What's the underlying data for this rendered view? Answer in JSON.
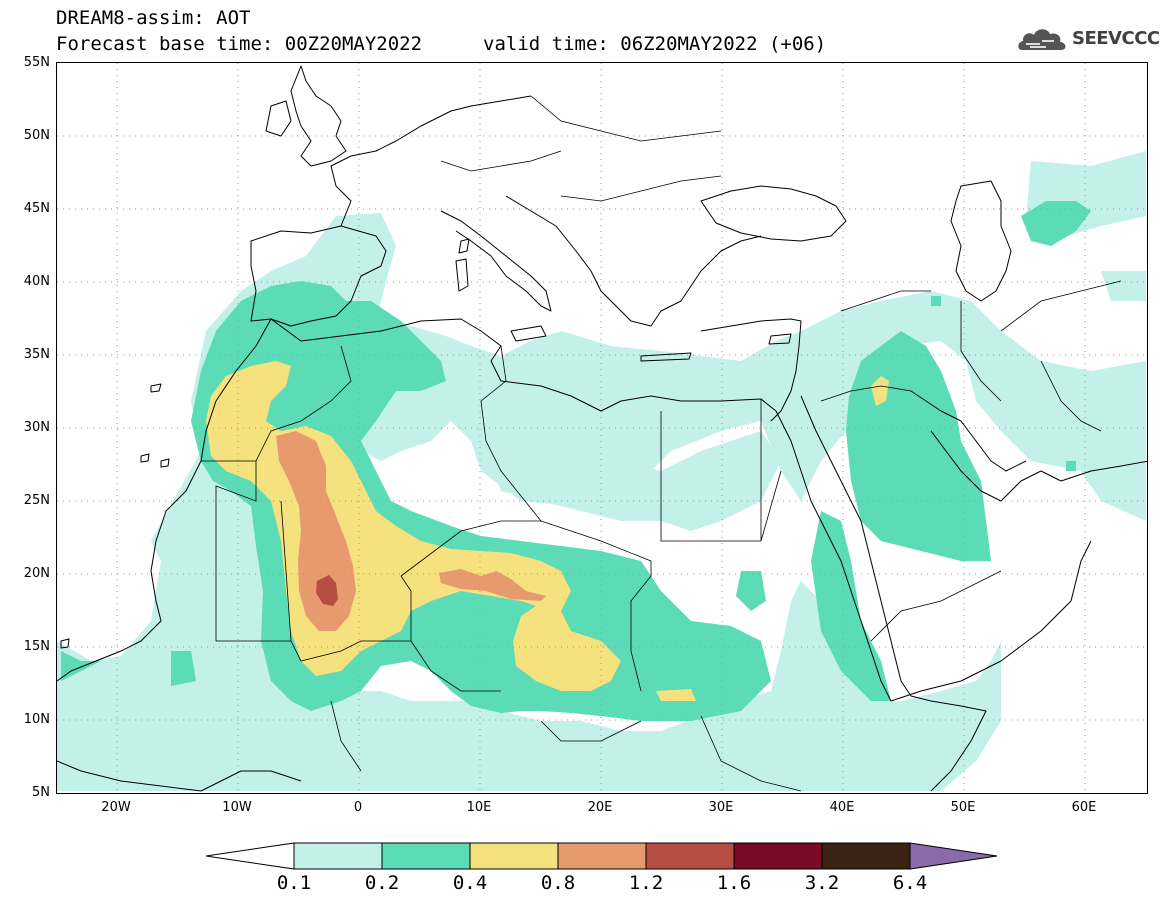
{
  "header": {
    "title_line1": "DREAM8-assim: AOT",
    "title_line2": "Forecast base time: 00Z20MAY2022",
    "valid_time": "valid time: 06Z20MAY2022 (+06)"
  },
  "logo": {
    "text": "SEEVCCC",
    "icon": "cloud-icon"
  },
  "map": {
    "lon_range": [
      -25,
      65
    ],
    "lat_range": [
      5,
      55
    ],
    "lat_labels": [
      "55N",
      "50N",
      "45N",
      "40N",
      "35N",
      "30N",
      "25N",
      "20N",
      "15N",
      "10N",
      "5N"
    ],
    "lon_labels": [
      "20W",
      "10W",
      "0",
      "10E",
      "20E",
      "30E",
      "40E",
      "50E",
      "60E"
    ],
    "grid": "dotted",
    "colors": {
      "level1": "#c3f0e8",
      "level2": "#5bdbb6",
      "level3": "#f5e27e",
      "level4": "#e69a6e",
      "level5": "#b64e42",
      "level6": "#7a0a26",
      "level7": "#3a2215",
      "level8": "#8a6aa8"
    }
  },
  "colorbar": {
    "ticks": [
      "0.1",
      "0.2",
      "0.4",
      "0.8",
      "1.2",
      "1.6",
      "3.2",
      "6.4"
    ],
    "colors": [
      "#ffffff",
      "#c3f0e8",
      "#5bdbb6",
      "#f5e27e",
      "#e69a6e",
      "#b64e42",
      "#7a0a26",
      "#3a2215",
      "#8a6aa8"
    ]
  }
}
